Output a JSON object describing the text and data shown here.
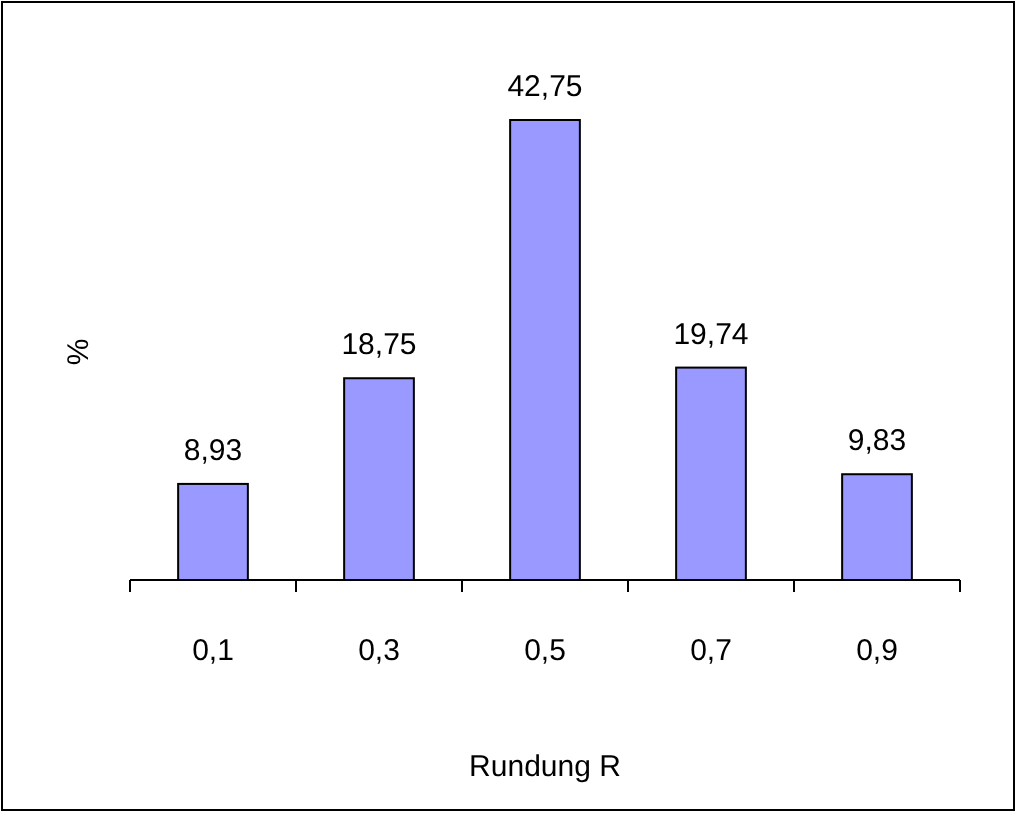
{
  "chart_data": {
    "type": "bar",
    "xlabel": "Rundung R",
    "ylabel": "%",
    "categories": [
      "0,1",
      "0,3",
      "0,5",
      "0,7",
      "0,9"
    ],
    "values": [
      8.93,
      18.75,
      42.75,
      19.74,
      9.83
    ],
    "value_labels": [
      "8,93",
      "18,75",
      "42,75",
      "19,74",
      "9,83"
    ],
    "color": "#9999ff"
  }
}
